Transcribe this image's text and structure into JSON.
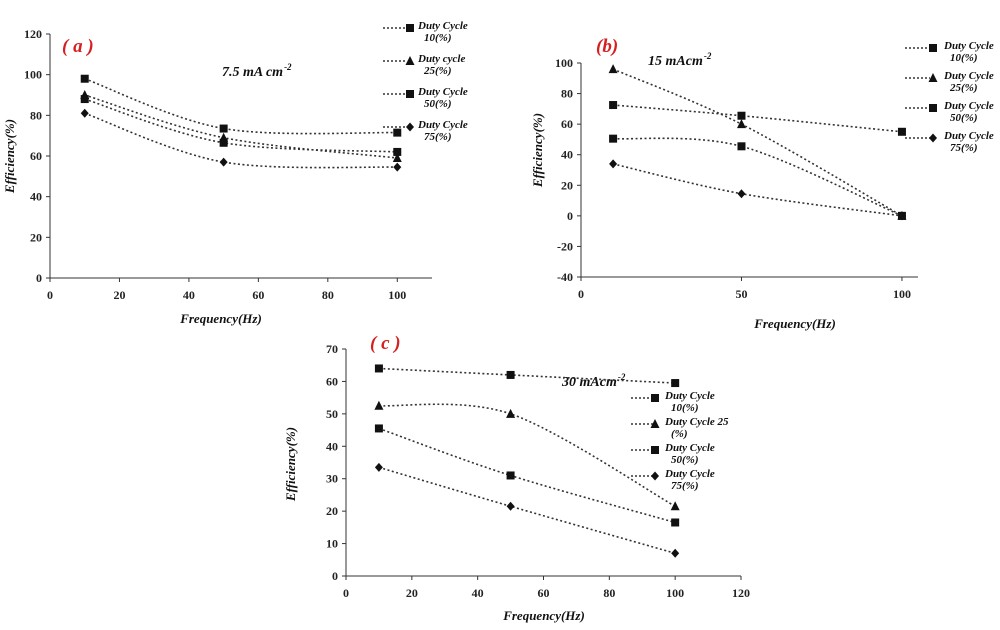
{
  "chart_data": [
    {
      "type": "line",
      "panel_label": "( a )",
      "annotation": "7.5 mA cm",
      "annotation_sup": "-2",
      "xlabel": "Frequency(Hz)",
      "ylabel": "Efficiency(%)",
      "xlim": [
        0,
        110
      ],
      "ylim": [
        0,
        120
      ],
      "xticks": [
        0,
        20,
        40,
        60,
        80,
        100
      ],
      "yticks": [
        0,
        20,
        40,
        60,
        80,
        100,
        120
      ],
      "x": [
        10,
        50,
        100
      ],
      "grid": false,
      "legend_position": "right",
      "series": [
        {
          "name": [
            "Duty Cycle",
            "10(%)"
          ],
          "marker": "square",
          "values": [
            98,
            73.5,
            71.5
          ]
        },
        {
          "name": [
            "Duty cycle",
            "25(%)"
          ],
          "marker": "triangle",
          "values": [
            90,
            69,
            59
          ]
        },
        {
          "name": [
            "Duty Cycle",
            "50(%)"
          ],
          "marker": "square",
          "values": [
            88,
            66.5,
            62
          ]
        },
        {
          "name": [
            "Duty Cycle",
            "75(%)"
          ],
          "marker": "diamond",
          "values": [
            81,
            57,
            54.5
          ]
        }
      ]
    },
    {
      "type": "line",
      "panel_label": "(b)",
      "annotation": "15 mAcm",
      "annotation_sup": "-2",
      "xlabel": "Frequency(Hz)",
      "ylabel": "Efficiency(%)",
      "xlim": [
        0,
        105
      ],
      "ylim": [
        -40,
        100
      ],
      "xticks": [
        0,
        50,
        100
      ],
      "yticks": [
        -40,
        -20,
        0,
        20,
        40,
        60,
        80,
        100
      ],
      "x": [
        10,
        50,
        100
      ],
      "grid": false,
      "legend_position": "right",
      "series": [
        {
          "name": [
            "Duty Cycle",
            "10(%)"
          ],
          "marker": "square",
          "values": [
            72.5,
            65.5,
            55
          ]
        },
        {
          "name": [
            "Duty Cycle",
            "25(%)"
          ],
          "marker": "triangle",
          "values": [
            96,
            60,
            0
          ]
        },
        {
          "name": [
            "Duty Cycle",
            "50(%)"
          ],
          "marker": "square",
          "values": [
            50.5,
            45.5,
            0
          ]
        },
        {
          "name": [
            "Duty Cycle",
            "75(%)"
          ],
          "marker": "diamond",
          "values": [
            34,
            14.5,
            0
          ]
        }
      ]
    },
    {
      "type": "line",
      "panel_label": "( c )",
      "annotation": "30 mAcm",
      "annotation_sup": "-2",
      "xlabel": "Frequency(Hz)",
      "ylabel": "Efficiency(%)",
      "xlim": [
        0,
        120
      ],
      "ylim": [
        0,
        70
      ],
      "xticks": [
        0,
        20,
        40,
        60,
        80,
        100,
        120
      ],
      "yticks": [
        0,
        10,
        20,
        30,
        40,
        50,
        60,
        70
      ],
      "x": [
        10,
        50,
        100
      ],
      "grid": false,
      "legend_position": "inside right",
      "series": [
        {
          "name": [
            "Duty Cycle",
            "10(%)"
          ],
          "marker": "square",
          "values": [
            64,
            62,
            59.5
          ]
        },
        {
          "name": [
            "Duty Cycle 25",
            "(%)"
          ],
          "marker": "triangle",
          "values": [
            52.5,
            50,
            21.5
          ]
        },
        {
          "name": [
            "Duty Cycle",
            "50(%)"
          ],
          "marker": "square",
          "values": [
            45.5,
            31,
            16.5
          ]
        },
        {
          "name": [
            "Duty Cycle",
            "75(%)"
          ],
          "marker": "diamond",
          "values": [
            33.5,
            21.5,
            7
          ]
        }
      ]
    }
  ]
}
